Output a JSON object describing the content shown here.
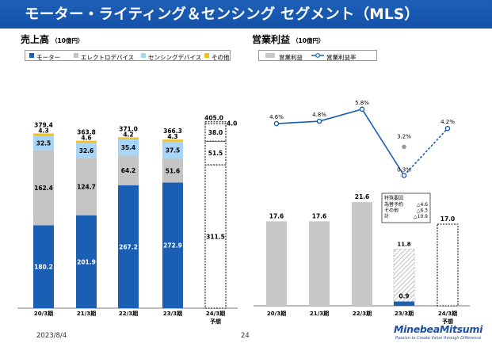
{
  "header": {
    "title": "モーター・ライティング＆センシング セグメント（MLS）"
  },
  "footer": {
    "date": "2023/8/4",
    "page": "24",
    "logo": "MinebeaMitsumi",
    "logo_tagline": "Passion to Create Value through Difference"
  },
  "colors": {
    "header_blue": "#1552a8",
    "motor": "#1a5fb4",
    "electro": "#c4c4c4",
    "sensing": "#a8d4f5",
    "other": "#f2c11c",
    "profit_bar": "#c8c8c8",
    "margin_line": "#1a5fb4"
  },
  "chart_data": [
    {
      "type": "bar",
      "stacked": true,
      "title": "売上高",
      "unit": "（10億円）",
      "categories": [
        "20/3期",
        "21/3期",
        "22/3期",
        "23/3期",
        "24/3期"
      ],
      "category_notes": [
        "",
        "",
        "",
        "",
        "予想"
      ],
      "forecast_index": 4,
      "ylim": [
        0,
        420
      ],
      "legend": [
        "モーター",
        "エレクトロデバイス",
        "センシングデバイス",
        "その他"
      ],
      "series": [
        {
          "name": "モーター",
          "values": [
            180.2,
            201.9,
            267.2,
            272.9,
            311.5
          ],
          "labels": [
            "180.2",
            "201.9",
            "267.2",
            "272.9",
            "311.5"
          ]
        },
        {
          "name": "エレクトロデバイス",
          "values": [
            162.4,
            124.7,
            64.2,
            51.6,
            51.5
          ],
          "labels": [
            "162.4",
            "124.7",
            "64.2",
            "51.6",
            "51.5"
          ]
        },
        {
          "name": "センシングデバイス",
          "values": [
            32.5,
            32.6,
            35.4,
            37.5,
            38.0
          ],
          "labels": [
            "32.5",
            "32.6",
            "35.4",
            "37.5",
            "38.0"
          ]
        },
        {
          "name": "その他",
          "values": [
            4.3,
            4.6,
            4.2,
            4.3,
            4.0
          ],
          "labels": [
            "4.3",
            "4.6",
            "4.2",
            "4.3",
            "4.0"
          ]
        }
      ],
      "totals": [
        379.4,
        363.8,
        371.0,
        366.3,
        405.0
      ],
      "total_labels": [
        "379.4",
        "363.8",
        "371.0",
        "366.3",
        "405.0"
      ]
    },
    {
      "type": "bar+line",
      "title": "営業利益",
      "unit": "（10億円）",
      "categories": [
        "20/3期",
        "21/3期",
        "22/3期",
        "23/3期",
        "24/3期"
      ],
      "category_notes": [
        "",
        "",
        "",
        "",
        "予想"
      ],
      "forecast_index": 4,
      "legend": [
        "営業利益",
        "営業利益率"
      ],
      "profit_ylim": [
        0,
        26
      ],
      "bars": {
        "name": "営業利益",
        "values": [
          17.6,
          17.6,
          21.6,
          0.9,
          17.0
        ],
        "labels": [
          "17.6",
          "17.6",
          "21.6",
          "0.9",
          "17.0"
        ]
      },
      "special_excluded": {
        "category": "23/3期",
        "value": 11.8,
        "label": "11.8",
        "box_title": "特殊要因",
        "items": [
          {
            "label": "為替予約",
            "value": "△4.6"
          },
          {
            "label": "その他",
            "value": "△6.3"
          },
          {
            "label": "計",
            "value": "△10.9"
          }
        ]
      },
      "margin_line": {
        "name": "営業利益率",
        "values": [
          4.6,
          4.8,
          5.8,
          0.3,
          4.2
        ],
        "labels": [
          "4.6%",
          "4.8%",
          "5.8%",
          "0.3%",
          "4.2%"
        ],
        "ylim": [
          0,
          8
        ],
        "adjusted": {
          "category": "23/3期",
          "value": 3.2,
          "label": "3.2%"
        }
      }
    }
  ]
}
